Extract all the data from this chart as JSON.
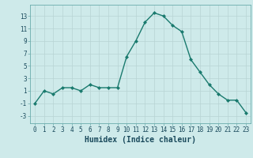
{
  "x": [
    0,
    1,
    2,
    3,
    4,
    5,
    6,
    7,
    8,
    9,
    10,
    11,
    12,
    13,
    14,
    15,
    16,
    17,
    18,
    19,
    20,
    21,
    22,
    23
  ],
  "y": [
    -1,
    1,
    0.5,
    1.5,
    1.5,
    1,
    2,
    1.5,
    1.5,
    1.5,
    6.5,
    9,
    12,
    13.5,
    13,
    11.5,
    10.5,
    6,
    4,
    2,
    0.5,
    -0.5,
    -0.5,
    -2.5
  ],
  "line_color": "#1a7a6e",
  "marker": "D",
  "marker_size": 2,
  "bg_color": "#ceeaea",
  "grid_color": "#b8d4d4",
  "xlabel": "Humidex (Indice chaleur)",
  "xlabel_fontsize": 7,
  "ylabel_ticks": [
    -3,
    -1,
    1,
    3,
    5,
    7,
    9,
    11,
    13
  ],
  "xlim": [
    -0.5,
    23.5
  ],
  "ylim": [
    -4.2,
    14.8
  ],
  "tick_fontsize": 5.5,
  "line_width": 1.0
}
